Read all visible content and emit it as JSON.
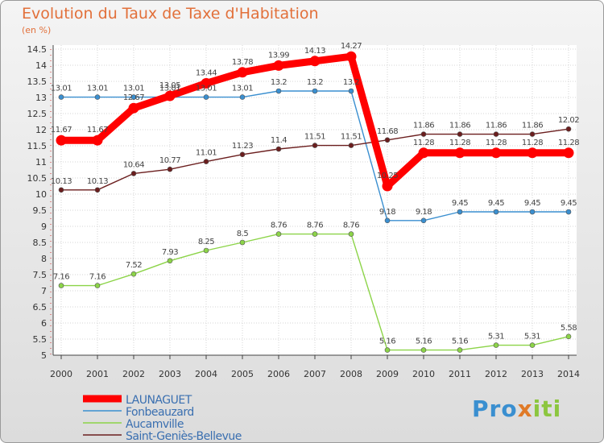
{
  "chart_data": {
    "type": "line",
    "title": "Evolution du Taux de Taxe d'Habitation",
    "xlabel": "",
    "ylabel": "(en %)",
    "x": [
      2000,
      2001,
      2002,
      2003,
      2004,
      2005,
      2006,
      2007,
      2008,
      2009,
      2010,
      2011,
      2012,
      2013,
      2014
    ],
    "ylim": [
      5,
      14.5
    ],
    "yticks": [
      5,
      5.5,
      6,
      6.5,
      7,
      7.5,
      8,
      8.5,
      9,
      9.5,
      10,
      10.5,
      11,
      11.5,
      12,
      12.5,
      13,
      13.5,
      14,
      14.5
    ],
    "legend_position": "bottom-left",
    "grid": true,
    "series": [
      {
        "name": "LAUNAGUET",
        "color": "#ff0000",
        "values": [
          11.67,
          11.67,
          12.67,
          13.05,
          13.44,
          13.78,
          13.99,
          14.13,
          14.27,
          10.25,
          11.28,
          11.28,
          11.28,
          11.28,
          11.28
        ]
      },
      {
        "name": "Fonbeauzard",
        "color": "#3a8fd0",
        "values": [
          13.01,
          13.01,
          13.01,
          13.01,
          13.01,
          13.01,
          13.2,
          13.2,
          13.2,
          9.18,
          9.18,
          9.45,
          9.45,
          9.45,
          9.45
        ]
      },
      {
        "name": "Aucamville",
        "color": "#8cd448",
        "values": [
          7.16,
          7.16,
          7.52,
          7.93,
          8.25,
          8.5,
          8.76,
          8.76,
          8.76,
          5.16,
          5.16,
          5.16,
          5.31,
          5.31,
          5.58
        ]
      },
      {
        "name": "Saint-Geniès-Bellevue",
        "color": "#6b1e1e",
        "values": [
          10.13,
          10.13,
          10.64,
          10.77,
          11.01,
          11.23,
          11.4,
          11.51,
          11.51,
          11.68,
          11.86,
          11.86,
          11.86,
          11.86,
          12.02
        ]
      }
    ],
    "value_labels": [
      [
        "11.67",
        "11.67",
        "12.67",
        "13.05",
        "13.44",
        "13.78",
        "13.99",
        "14.13",
        "14.27",
        "10.25",
        "11.28",
        "11.28",
        "11.28",
        "11.28",
        "11.28"
      ],
      [
        "13.01",
        "13.01",
        "13.01",
        "13.01",
        "13.01",
        "13.01",
        "13.2",
        "13.2",
        "13.2",
        "9.18",
        "9.18",
        "9.45",
        "9.45",
        "9.45",
        "9.45"
      ],
      [
        "7.16",
        "7.16",
        "7.52",
        "7.93",
        "8.25",
        "8.5",
        "8.76",
        "8.76",
        "8.76",
        "5.16",
        "5.16",
        "5.16",
        "5.31",
        "5.31",
        "5.58"
      ],
      [
        "10.13",
        "10.13",
        "10.64",
        "10.77",
        "11.01",
        "11.23",
        "11.4",
        "11.51",
        "11.51",
        "11.68",
        "11.86",
        "11.86",
        "11.86",
        "11.86",
        "12.02"
      ]
    ]
  }
}
